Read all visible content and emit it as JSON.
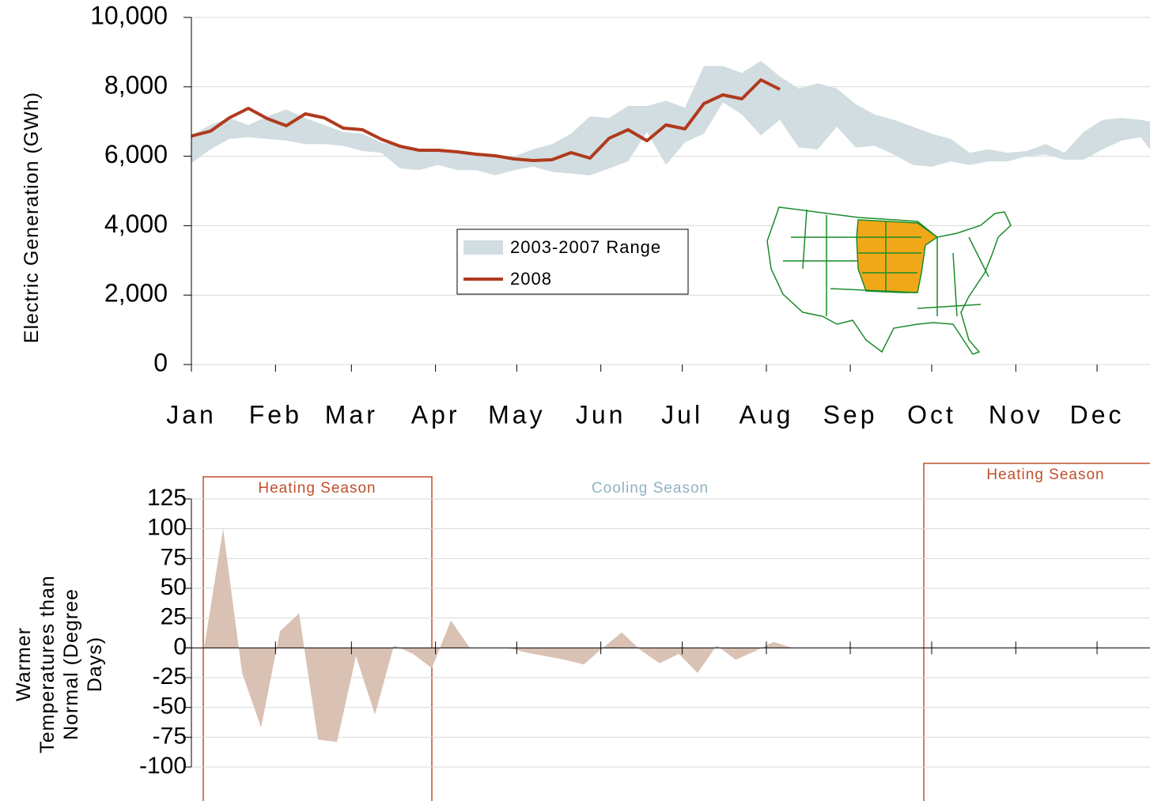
{
  "chart_data": [
    {
      "type": "band-line",
      "y_label": "Electric Generation (GWh)",
      "x": [
        0,
        1,
        2,
        3,
        4,
        5,
        6,
        7,
        8,
        9,
        10,
        11,
        12,
        13,
        14,
        15,
        16,
        17,
        18,
        19,
        20,
        21,
        22,
        23,
        24,
        25,
        26,
        27,
        28,
        29,
        30,
        31,
        32,
        33,
        34,
        35,
        36,
        37,
        38,
        39,
        40,
        41,
        42,
        43,
        44,
        45,
        46,
        47,
        48,
        49,
        50,
        50.5
      ],
      "xlim": [
        0,
        50.5
      ],
      "xticks": [
        {
          "value": 0,
          "label": "Jan"
        },
        {
          "value": 4.43,
          "label": "Feb"
        },
        {
          "value": 8.43,
          "label": "Mar"
        },
        {
          "value": 12.86,
          "label": "Apr"
        },
        {
          "value": 17.14,
          "label": "May"
        },
        {
          "value": 21.57,
          "label": "Jun"
        },
        {
          "value": 25.86,
          "label": "Jul"
        },
        {
          "value": 30.29,
          "label": "Aug"
        },
        {
          "value": 34.71,
          "label": "Sep"
        },
        {
          "value": 39,
          "label": "Oct"
        },
        {
          "value": 43.43,
          "label": "Nov"
        },
        {
          "value": 47.71,
          "label": "Dec"
        }
      ],
      "ylim": [
        0,
        10000
      ],
      "yticks": [
        {
          "value": 0,
          "label": "0"
        },
        {
          "value": 2000,
          "label": "2,000"
        },
        {
          "value": 4000,
          "label": "4,000"
        },
        {
          "value": 6000,
          "label": "6,000"
        },
        {
          "value": 8000,
          "label": "8,000"
        },
        {
          "value": 10000,
          "label": "10,000"
        }
      ],
      "grid": true,
      "series": [
        {
          "name": "2003-2007 Range",
          "color": "#d1dde0",
          "upper": [
            6600,
            6900,
            7100,
            6900,
            7150,
            7350,
            7100,
            6900,
            6700,
            6650,
            6400,
            6300,
            6200,
            6200,
            6100,
            6100,
            6000,
            6000,
            6200,
            6350,
            6650,
            7150,
            7100,
            7450,
            7450,
            7600,
            7400,
            8600,
            8600,
            8400,
            8750,
            8300,
            7950,
            8100,
            7950,
            7500,
            7200,
            7050,
            6850,
            6650,
            6500,
            6100,
            6200,
            6100,
            6150,
            6350,
            6100,
            6700,
            7050,
            7100,
            7050,
            7000
          ],
          "lower": [
            5800,
            6200,
            6500,
            6550,
            6500,
            6450,
            6350,
            6350,
            6300,
            6150,
            6100,
            5650,
            5600,
            5750,
            5600,
            5600,
            5450,
            5600,
            5700,
            5550,
            5500,
            5450,
            5650,
            5850,
            6700,
            5750,
            6400,
            6650,
            7550,
            7200,
            6600,
            7050,
            6250,
            6200,
            6850,
            6250,
            6300,
            6050,
            5750,
            5700,
            5850,
            5750,
            5850,
            5850,
            6000,
            6050,
            5900,
            5900,
            6200,
            6450,
            6550,
            6200
          ]
        },
        {
          "name": "2008",
          "color": "#b03a1e",
          "values": [
            6583,
            6720,
            7107,
            7380,
            7084,
            6879,
            7221,
            7107,
            6811,
            6765,
            6492,
            6287,
            6173,
            6173,
            6128,
            6059,
            6014,
            5923,
            5877,
            5900,
            6105,
            5945,
            6515,
            6765,
            6446,
            6902,
            6788,
            7517,
            7768,
            7654,
            8200,
            7927,
            null,
            null,
            null,
            null,
            null,
            null,
            null,
            null,
            null,
            null,
            null,
            null,
            null,
            null,
            null,
            null,
            null,
            null,
            null,
            null
          ]
        }
      ]
    },
    {
      "type": "area",
      "y_label": "Warmer Temperatures than Normal (Degree Days)",
      "x": [
        0.67,
        1.67,
        2.67,
        3.67,
        4.67,
        5.67,
        6.67,
        7.67,
        8.67,
        9.67,
        10.67,
        11.67,
        12.67,
        13.67,
        14.67,
        15.67,
        16.67,
        17.67,
        18.67,
        19.67,
        20.67,
        21.67,
        22.67,
        23.67,
        24.67,
        25.67,
        26.67,
        27.67,
        28.67,
        29.67,
        30.67,
        31.67
      ],
      "values": [
        0,
        100,
        -21,
        -67,
        14,
        29,
        -77,
        -79,
        -7,
        -56,
        2,
        -5,
        -17,
        23,
        0,
        0,
        0,
        -4,
        -7,
        -10,
        -14,
        0,
        13,
        -2,
        -13,
        -5,
        -21,
        2,
        -10,
        -3,
        5,
        0
      ],
      "color": "#d9c2b4",
      "xlim": [
        0,
        50.5
      ],
      "ylim": [
        -100,
        125
      ],
      "yticks": [
        -100,
        -75,
        -50,
        -25,
        0,
        25,
        50,
        75,
        100,
        125
      ],
      "grid": true,
      "annotations": [
        "Heating Season",
        "Cooling Season",
        "Heating Season"
      ]
    }
  ]
}
